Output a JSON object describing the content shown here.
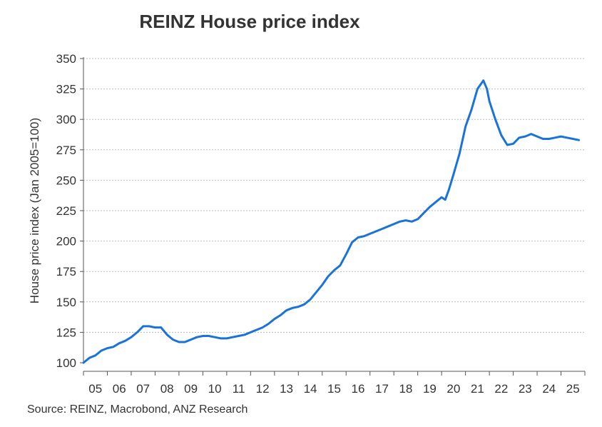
{
  "chart_data": {
    "type": "line",
    "title": "REINZ House price index",
    "ylabel": "House price index (Jan 2005=100)",
    "xlabel": "",
    "source": "Source: REINZ, Macrobond, ANZ Research",
    "ylim": [
      100,
      350
    ],
    "xlim": [
      2005.0,
      2026.0
    ],
    "y_ticks": [
      100,
      125,
      150,
      175,
      200,
      225,
      250,
      275,
      300,
      325,
      350
    ],
    "x_tick_labels": [
      "05",
      "06",
      "07",
      "08",
      "09",
      "10",
      "11",
      "12",
      "13",
      "14",
      "15",
      "16",
      "17",
      "18",
      "19",
      "20",
      "21",
      "22",
      "23",
      "24",
      "25"
    ],
    "grid": true,
    "line_color": "#1a73d9",
    "series": [
      {
        "x": [
          2005.0,
          2005.25,
          2005.5,
          2005.75,
          2006.0,
          2006.25,
          2006.5,
          2006.75,
          2007.0,
          2007.25,
          2007.5,
          2007.75,
          2008.0,
          2008.25,
          2008.5,
          2008.75,
          2009.0,
          2009.25,
          2009.5,
          2009.75,
          2010.0,
          2010.25,
          2010.5,
          2010.75,
          2011.0,
          2011.25,
          2011.5,
          2011.75,
          2012.0,
          2012.25,
          2012.5,
          2012.75,
          2013.0,
          2013.25,
          2013.5,
          2013.75,
          2014.0,
          2014.25,
          2014.5,
          2014.75,
          2015.0,
          2015.25,
          2015.5,
          2015.75,
          2016.0,
          2016.25,
          2016.5,
          2016.75,
          2017.0,
          2017.25,
          2017.5,
          2017.75,
          2018.0,
          2018.25,
          2018.5,
          2018.75,
          2019.0,
          2019.25,
          2019.5,
          2019.75,
          2020.0,
          2020.15,
          2020.3,
          2020.5,
          2020.75,
          2021.0,
          2021.25,
          2021.5,
          2021.75,
          2021.9,
          2022.0,
          2022.25,
          2022.5,
          2022.75,
          2023.0,
          2023.25,
          2023.5,
          2023.75,
          2024.0,
          2024.25,
          2024.5,
          2024.75,
          2025.0,
          2025.25,
          2025.5,
          2025.75
        ],
        "values": [
          100,
          104,
          106,
          110,
          112,
          113,
          116,
          118,
          121,
          125,
          130,
          130,
          129,
          129,
          123,
          119,
          117,
          117,
          119,
          121,
          122,
          122,
          121,
          120,
          120,
          121,
          122,
          123,
          125,
          127,
          129,
          132,
          136,
          139,
          143,
          145,
          146,
          148,
          152,
          158,
          164,
          171,
          176,
          180,
          189,
          199,
          203,
          204,
          206,
          208,
          210,
          212,
          214,
          216,
          217,
          216,
          218,
          223,
          228,
          232,
          236,
          234,
          242,
          255,
          272,
          294,
          308,
          325,
          332,
          325,
          315,
          300,
          287,
          279,
          280,
          285,
          286,
          288,
          286,
          284,
          284,
          285,
          286,
          285,
          284,
          283
        ]
      }
    ]
  }
}
